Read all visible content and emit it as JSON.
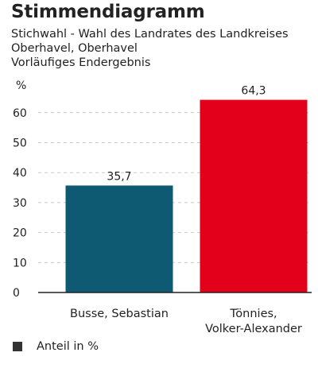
{
  "header": {
    "title": "Stimmendiagramm",
    "subtitle_lines": [
      "Stichwahl - Wahl des Landrates des Landkreises",
      "Oberhavel, Oberhavel",
      "Vorläufiges Endergebnis"
    ]
  },
  "legend": {
    "label": "Anteil in %",
    "swatch_color": "#333333"
  },
  "chart_data": {
    "type": "bar",
    "ylabel": "%",
    "ylim": [
      0,
      70
    ],
    "yticks": [
      0,
      10,
      20,
      30,
      40,
      50,
      60
    ],
    "grid": "horizontal dashed",
    "categories": [
      [
        "Busse, Sebastian"
      ],
      [
        "Tönnies,",
        "Volker-Alexander"
      ]
    ],
    "values": [
      35.7,
      64.3
    ],
    "value_labels": [
      "35,7",
      "64,3"
    ],
    "colors": [
      "#0e5a73",
      "#e2001a"
    ]
  }
}
